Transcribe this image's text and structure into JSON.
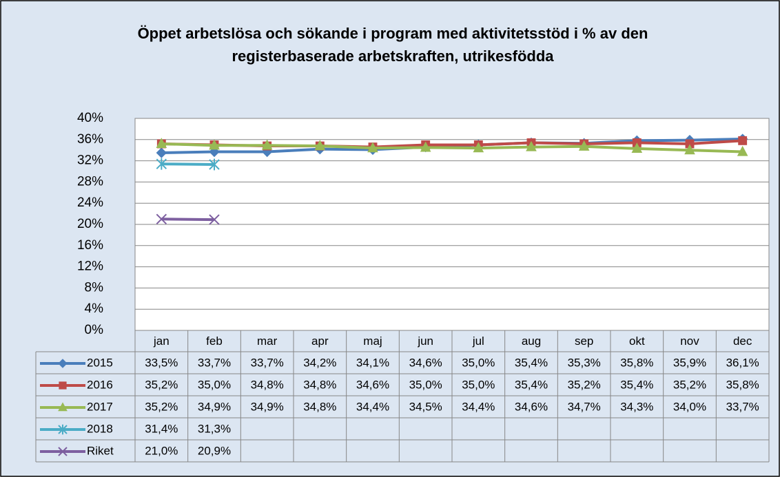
{
  "chart_data": {
    "type": "line",
    "title": "Öppet arbetslösa och sökande i program med aktivitetsstöd i % av den registerbaserade arbetskraften, utrikesfödda",
    "categories": [
      "jan",
      "feb",
      "mar",
      "apr",
      "maj",
      "jun",
      "jul",
      "aug",
      "sep",
      "okt",
      "nov",
      "dec"
    ],
    "ylim": [
      0,
      40
    ],
    "yticks": [
      {
        "value": 0,
        "label": "0%"
      },
      {
        "value": 4,
        "label": "4%"
      },
      {
        "value": 8,
        "label": "8%"
      },
      {
        "value": 12,
        "label": "12%"
      },
      {
        "value": 16,
        "label": "16%"
      },
      {
        "value": 20,
        "label": "20%"
      },
      {
        "value": 24,
        "label": "24%"
      },
      {
        "value": 28,
        "label": "28%"
      },
      {
        "value": 32,
        "label": "32%"
      },
      {
        "value": 36,
        "label": "36%"
      },
      {
        "value": 40,
        "label": "40%"
      }
    ],
    "grid": true,
    "series": [
      {
        "name": "2015",
        "color": "#4a7ebb",
        "marker": "diamond",
        "values": [
          33.5,
          33.7,
          33.7,
          34.2,
          34.1,
          34.6,
          35.0,
          35.4,
          35.3,
          35.8,
          35.9,
          36.1
        ],
        "value_labels": [
          "33,5%",
          "33,7%",
          "33,7%",
          "34,2%",
          "34,1%",
          "34,6%",
          "35,0%",
          "35,4%",
          "35,3%",
          "35,8%",
          "35,9%",
          "36,1%"
        ]
      },
      {
        "name": "2016",
        "color": "#be4b48",
        "marker": "square",
        "values": [
          35.2,
          35.0,
          34.8,
          34.8,
          34.6,
          35.0,
          35.0,
          35.4,
          35.2,
          35.4,
          35.2,
          35.8
        ],
        "value_labels": [
          "35,2%",
          "35,0%",
          "34,8%",
          "34,8%",
          "34,6%",
          "35,0%",
          "35,0%",
          "35,4%",
          "35,2%",
          "35,4%",
          "35,2%",
          "35,8%"
        ]
      },
      {
        "name": "2017",
        "color": "#98b954",
        "marker": "triangle",
        "values": [
          35.2,
          34.9,
          34.9,
          34.8,
          34.4,
          34.5,
          34.4,
          34.6,
          34.7,
          34.3,
          34.0,
          33.7
        ],
        "value_labels": [
          "35,2%",
          "34,9%",
          "34,9%",
          "34,8%",
          "34,4%",
          "34,5%",
          "34,4%",
          "34,6%",
          "34,7%",
          "34,3%",
          "34,0%",
          "33,7%"
        ]
      },
      {
        "name": "2018",
        "color": "#4bacc6",
        "marker": "asterisk",
        "values": [
          31.4,
          31.3,
          null,
          null,
          null,
          null,
          null,
          null,
          null,
          null,
          null,
          null
        ],
        "value_labels": [
          "31,4%",
          "31,3%",
          null,
          null,
          null,
          null,
          null,
          null,
          null,
          null,
          null,
          null
        ]
      },
      {
        "name": "Riket",
        "color": "#7d5fa0",
        "marker": "x",
        "values": [
          21.0,
          20.9,
          null,
          null,
          null,
          null,
          null,
          null,
          null,
          null,
          null,
          null
        ],
        "value_labels": [
          "21,0%",
          "20,9%",
          null,
          null,
          null,
          null,
          null,
          null,
          null,
          null,
          null,
          null
        ]
      }
    ]
  }
}
